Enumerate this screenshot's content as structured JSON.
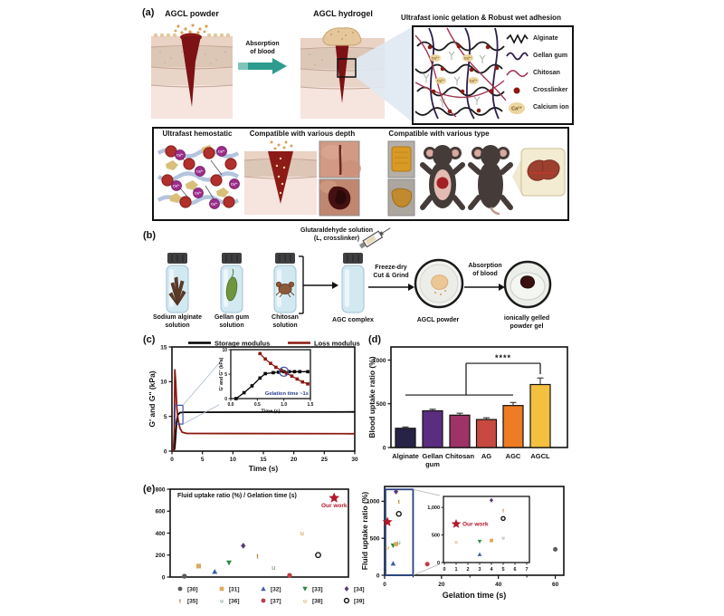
{
  "figure": {
    "panel_labels": {
      "a": "(a)",
      "b": "(b)",
      "c": "(c)",
      "d": "(d)",
      "e": "(e)"
    }
  },
  "panel_a": {
    "powder_title": "AGCL powder",
    "hydrogel_title": "AGCL hydrogel",
    "arrow_line1": "Absorption",
    "arrow_line2": "of blood",
    "network_title": "Ultrafast ionic gelation & Robust wet adhesion",
    "calcium_symbol": "Ca²⁺",
    "network_legend": [
      {
        "icon": "alginate-line",
        "label": "Alginate"
      },
      {
        "icon": "gellan-gum-line",
        "label": "Gellan gum"
      },
      {
        "icon": "chitosan-line",
        "label": "Chitosan"
      },
      {
        "icon": "crosslinker-dot",
        "label": "Crosslinker"
      },
      {
        "icon": "calcium-ellipse",
        "label": "Calcium ion"
      }
    ],
    "hemostatic_title": "Ultrafast hemostatic",
    "depth_title": "Compatible with various depth",
    "type_title": "Compatible with various type"
  },
  "panel_b": {
    "glutaraldehyde_line1": "Glutaraldehyde solution",
    "glutaraldehyde_line2": "(L, crosslinker)",
    "vial1_line1": "Sodium alginate",
    "vial1_line2": "solution",
    "vial2_line1": "Gellan gum",
    "vial2_line2": "solution",
    "vial3_line1": "Chitosan",
    "vial3_line2": "solution",
    "vial4_label": "AGC complex",
    "freeze_line1": "Freeze-dry",
    "freeze_line2": "Cut & Grind",
    "powder_label": "AGCL powder",
    "absorb_line1": "Absorption",
    "absorb_line2": "of blood",
    "gel_line1": "ionically gelled",
    "gel_line2": "powder gel"
  },
  "ref_markers": {
    "[30]": {
      "type": "circle",
      "color": "#5b5b5b"
    },
    "[31]": {
      "type": "square",
      "color": "#dda95e"
    },
    "[32]": {
      "type": "triangle-up",
      "color": "#3d5fa5"
    },
    "[33]": {
      "type": "triangle-down",
      "color": "#2e8b45"
    },
    "[34]": {
      "type": "diamond",
      "color": "#5a3a7d"
    },
    "[35]": {
      "type": "glyph-t",
      "color": "#a8842c"
    },
    "[36]": {
      "type": "glyph-u",
      "color": "#93ab90"
    },
    "[37]": {
      "type": "circle",
      "color": "#c23a48"
    },
    "[38]": {
      "type": "glyph-u",
      "color": "#d9b06b"
    },
    "[39]": {
      "type": "circle-open",
      "color": "#111111"
    }
  },
  "our_work_marker": {
    "type": "star",
    "color": "#b5172a"
  },
  "chart_data": [
    {
      "id": "rheology",
      "type": "line",
      "xlabel": "Time (s)",
      "ylabel": "G' and G'' (kPa)",
      "xlim": [
        0,
        30
      ],
      "ylim": [
        0,
        15
      ],
      "xticks": [
        0,
        5,
        10,
        15,
        20,
        25,
        30
      ],
      "xtick_labels": [
        "0",
        "5",
        "10",
        "15",
        "20",
        "25",
        "30"
      ],
      "yticks": [
        0,
        5,
        10,
        15
      ],
      "ytick_labels": [
        "0",
        "5",
        "10",
        "15"
      ],
      "legend": [
        {
          "label": "Storage modulus",
          "color": "#000000"
        },
        {
          "label": "Loss modulus",
          "color": "#8b1a12"
        }
      ],
      "series": [
        {
          "name": "Storage modulus",
          "color": "#000000",
          "points": [
            [
              0,
              0
            ],
            [
              0.45,
              0.3
            ],
            [
              0.6,
              2.0
            ],
            [
              0.75,
              4.0
            ],
            [
              0.95,
              5.2
            ],
            [
              1.3,
              5.55
            ],
            [
              2,
              5.6
            ],
            [
              30,
              5.65
            ]
          ]
        },
        {
          "name": "Loss modulus",
          "color": "#8b1a12",
          "points": [
            [
              0,
              0
            ],
            [
              0.25,
              0.2
            ],
            [
              0.38,
              3.0
            ],
            [
              0.48,
              11.7
            ],
            [
              0.62,
              9.8
            ],
            [
              0.8,
              6.2
            ],
            [
              1.0,
              4.6
            ],
            [
              1.3,
              3.3
            ],
            [
              1.7,
              2.7
            ],
            [
              2.5,
              2.55
            ],
            [
              30,
              2.5
            ]
          ]
        }
      ],
      "zoom_rect": {
        "x0": 0.5,
        "x1": 1.8,
        "y0": 3.9,
        "y1": 6.6
      },
      "inset": {
        "xlabel": "Time (s)",
        "ylabel": "G' and G'' (kPa)",
        "xlim": [
          0,
          1.5
        ],
        "ylim": [
          0,
          10
        ],
        "xticks": [
          0,
          0.5,
          1.0,
          1.5
        ],
        "xtick_labels": [
          "0.0",
          "0.5",
          "1.0",
          "1.5"
        ],
        "yticks": [
          0,
          5,
          10
        ],
        "ytick_labels": [
          "0",
          "5",
          "10"
        ],
        "annotation": "Gelation time ~1s",
        "annotation_color": "#2a3f8f",
        "crossover": [
          1.0,
          5.5
        ],
        "series": [
          {
            "name": "Storage modulus",
            "color": "#000000",
            "points": [
              [
                0.1,
                0
              ],
              [
                0.25,
                1.2
              ],
              [
                0.4,
                2.6
              ],
              [
                0.55,
                4.2
              ],
              [
                0.65,
                5.1
              ],
              [
                0.8,
                5.3
              ],
              [
                0.9,
                5.4
              ],
              [
                1.0,
                5.5
              ],
              [
                1.1,
                5.5
              ],
              [
                1.2,
                5.5
              ],
              [
                1.3,
                5.5
              ],
              [
                1.45,
                5.5
              ]
            ]
          },
          {
            "name": "Loss modulus",
            "color": "#8b1a12",
            "points": [
              [
                0.45,
                10.4
              ],
              [
                0.55,
                9.2
              ],
              [
                0.65,
                8.1
              ],
              [
                0.75,
                7.2
              ],
              [
                0.85,
                6.4
              ],
              [
                0.95,
                5.8
              ],
              [
                1.05,
                5.2
              ],
              [
                1.15,
                4.6
              ],
              [
                1.25,
                4.0
              ],
              [
                1.35,
                3.4
              ],
              [
                1.45,
                3.0
              ]
            ]
          }
        ]
      }
    },
    {
      "id": "blood-uptake",
      "type": "bar",
      "ylabel": "Blood uptake ratio (%)",
      "ylim": [
        0,
        1150
      ],
      "yticks": [
        0,
        500,
        1000
      ],
      "ytick_labels": [
        "0",
        "500",
        "1000"
      ],
      "categories": [
        [
          "Alginate"
        ],
        [
          "Gellan",
          "gum"
        ],
        [
          "Chitosan"
        ],
        [
          "AG"
        ],
        [
          "AGC"
        ],
        [
          "AGCL"
        ]
      ],
      "values": [
        220,
        420,
        370,
        320,
        480,
        720
      ],
      "errors": [
        15,
        18,
        22,
        20,
        35,
        75
      ],
      "colors": [
        "#262346",
        "#5a2d7f",
        "#9e3367",
        "#c7493f",
        "#ed7c23",
        "#f3c13f"
      ],
      "significance": "****"
    },
    {
      "id": "fluid-ratio-per-time",
      "type": "scatter",
      "title": "Fluid uptake ratio (%) / Gelation time (s)",
      "xlim": [
        0,
        10
      ],
      "ylim": [
        0,
        800
      ],
      "yticks": [
        0,
        200,
        400,
        600,
        800
      ],
      "ytick_labels": [
        "0",
        "200",
        "400",
        "600",
        "800"
      ],
      "points": [
        {
          "ref": "[30]",
          "x": 0.8,
          "y": 8
        },
        {
          "ref": "[31]",
          "x": 1.6,
          "y": 100
        },
        {
          "ref": "[32]",
          "x": 2.5,
          "y": 50
        },
        {
          "ref": "[33]",
          "x": 3.3,
          "y": 130
        },
        {
          "ref": "[34]",
          "x": 4.1,
          "y": 285
        },
        {
          "ref": "[35]",
          "x": 4.9,
          "y": 190
        },
        {
          "ref": "[36]",
          "x": 5.8,
          "y": 90
        },
        {
          "ref": "[37]",
          "x": 6.7,
          "y": 15
        },
        {
          "ref": "[38]",
          "x": 7.4,
          "y": 400
        },
        {
          "ref": "[39]",
          "x": 8.3,
          "y": 200
        }
      ],
      "our_work": {
        "label": "Our work",
        "x": 9.2,
        "y": 720
      },
      "legend_rows": [
        [
          "[30]",
          "[31]",
          "[32]",
          "[33]",
          "[34]"
        ],
        [
          "[35]",
          "[36]",
          "[37]",
          "[38]",
          "[39]"
        ]
      ]
    },
    {
      "id": "fluid-vs-gelation",
      "type": "scatter",
      "xlabel": "Gelation time (s)",
      "ylabel": "Fluid uptake ratio (%)",
      "xlim": [
        0,
        63
      ],
      "xticks": [
        0,
        20,
        40,
        60
      ],
      "xtick_labels": [
        "0",
        "20",
        "40",
        "60"
      ],
      "xminor": [
        10,
        30,
        50
      ],
      "ylim": [
        0,
        1200
      ],
      "yticks": [
        0,
        500,
        1000
      ],
      "ytick_labels": [
        "0",
        "500",
        "1000"
      ],
      "points": [
        {
          "ref": "[34]",
          "x": 4,
          "y": 1130
        },
        {
          "ref": "[35]",
          "x": 5,
          "y": 1000
        },
        {
          "ref": "[39]",
          "x": 5,
          "y": 830
        },
        {
          "ref": "[38]",
          "x": 1,
          "y": 380
        },
        {
          "ref": "[33]",
          "x": 3,
          "y": 400
        },
        {
          "ref": "[31]",
          "x": 4,
          "y": 420
        },
        {
          "ref": "[36]",
          "x": 5,
          "y": 450
        },
        {
          "ref": "[32]",
          "x": 3,
          "y": 160
        },
        {
          "ref": "[37]",
          "x": 15,
          "y": 150
        },
        {
          "ref": "[30]",
          "x": 60,
          "y": 350
        }
      ],
      "our_work": {
        "label": "Our work",
        "x": 1,
        "y": 720
      },
      "zoom_rect": {
        "x0": 0.3,
        "x1": 10,
        "y0": 0,
        "y1": 1160
      },
      "inset": {
        "xlim": [
          0,
          7
        ],
        "xticks": [
          0,
          1,
          2,
          3,
          4,
          5,
          6,
          7
        ],
        "xtick_labels": [
          "0",
          "1",
          "2",
          "3",
          "4",
          "5",
          "6",
          "7"
        ],
        "ylim": [
          0,
          1200
        ],
        "yticks": [
          0,
          500,
          1000
        ],
        "ytick_labels": [
          "0",
          "500",
          "1,000"
        ],
        "points": [
          {
            "ref": "[34]",
            "x": 4,
            "y": 1130
          },
          {
            "ref": "[35]",
            "x": 5,
            "y": 950
          },
          {
            "ref": "[39]",
            "x": 5,
            "y": 800
          },
          {
            "ref": "[38]",
            "x": 1,
            "y": 380
          },
          {
            "ref": "[33]",
            "x": 3,
            "y": 380
          },
          {
            "ref": "[31]",
            "x": 4,
            "y": 400
          },
          {
            "ref": "[36]",
            "x": 5,
            "y": 450
          },
          {
            "ref": "[32]",
            "x": 3,
            "y": 150
          }
        ],
        "our_work": {
          "label": "Our work",
          "x": 1,
          "y": 700
        }
      }
    }
  ]
}
